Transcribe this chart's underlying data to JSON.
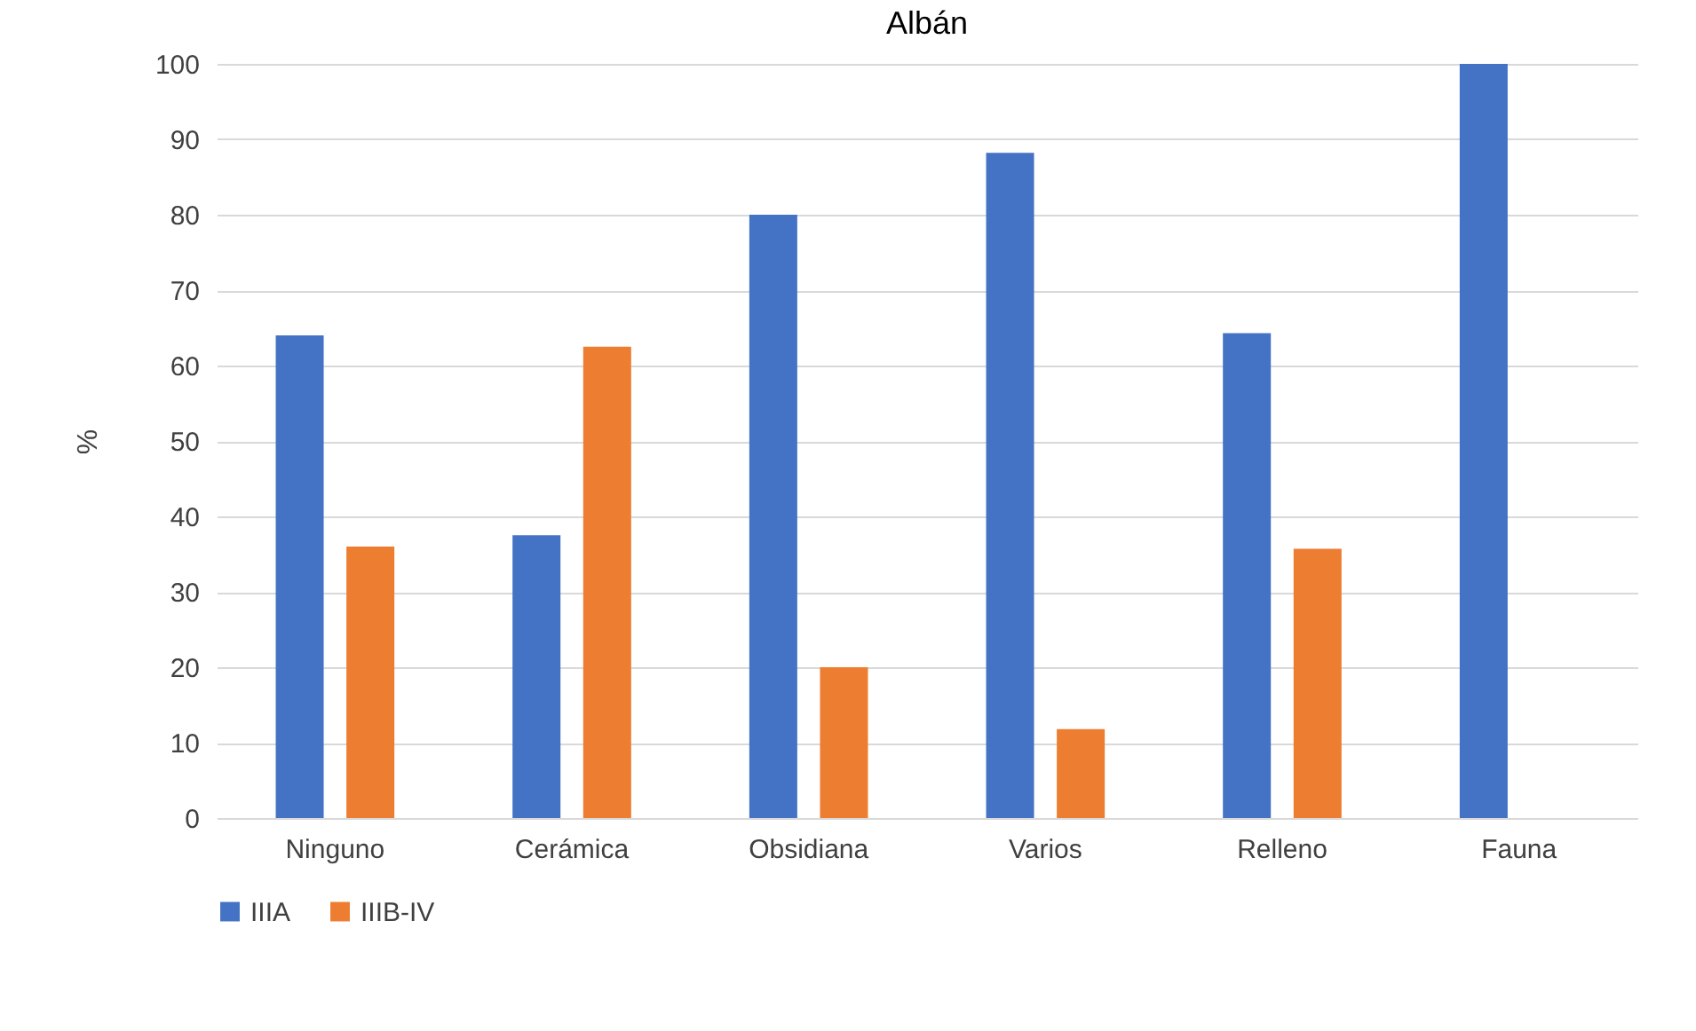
{
  "chart_data": {
    "type": "bar",
    "title": "Albán",
    "ylabel": "%",
    "categories": [
      "Ninguno",
      "Cerámica",
      "Obsidiana",
      "Varios",
      "Relleno",
      "Fauna"
    ],
    "series": [
      {
        "name": "IIIA",
        "color": "#4472c4",
        "values": [
          64,
          37.5,
          80,
          88.2,
          64.3,
          100
        ]
      },
      {
        "name": "IIIB-IV",
        "color": "#ed7d31",
        "values": [
          36,
          62.5,
          20,
          11.8,
          35.7,
          0
        ]
      }
    ],
    "ylim": [
      0,
      100
    ],
    "yticks": [
      0,
      10,
      20,
      30,
      40,
      50,
      60,
      70,
      80,
      90,
      100
    ],
    "grid": "y",
    "legend": "bottom"
  }
}
